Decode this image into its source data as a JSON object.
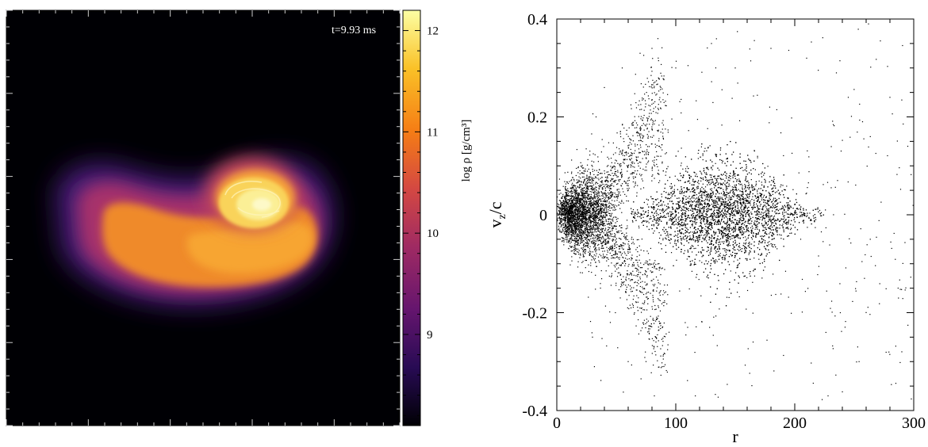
{
  "chart_data": [
    {
      "type": "heatmap",
      "annotation": "t=9.93 ms",
      "colorbar": {
        "label": "log ρ [g/cm³]",
        "range": [
          8.1,
          12.2
        ],
        "ticks": [
          9,
          10,
          11,
          12
        ],
        "colormap": [
          "#000004",
          "#280b54",
          "#65156e",
          "#9f2a63",
          "#d44842",
          "#f57d15",
          "#fac127",
          "#fcffa4"
        ]
      },
      "density_features": [
        {
          "feature": "tidal tail",
          "log_rho_peak": 11.2
        },
        {
          "feature": "remnant core",
          "log_rho_peak": 12.2
        }
      ]
    },
    {
      "type": "scatter",
      "xlabel": "r",
      "ylabel": "v_z/c",
      "xlim": [
        0,
        300
      ],
      "ylim": [
        -0.4,
        0.4
      ],
      "xticks": [
        "0",
        "100",
        "200",
        "300"
      ],
      "yticks": [
        "-0.4",
        "-0.2",
        "0",
        "0.2",
        "0.4"
      ],
      "point_color": "#000000",
      "components": [
        {
          "component": "core",
          "r_range": [
            0,
            50
          ],
          "vz_spread": 0.06
        },
        {
          "component": "v-shaped outflow",
          "r_range": [
            30,
            90
          ],
          "vz_peak": 0.36
        },
        {
          "component": "main disk",
          "r_range": [
            60,
            210
          ],
          "center_r": 140,
          "vz_spread": 0.05
        },
        {
          "component": "sparse halo",
          "r_range": [
            30,
            300
          ],
          "vz_range": [
            -0.38,
            0.39
          ]
        }
      ],
      "points": [
        [
          5,
          0.0
        ],
        [
          8,
          0.05
        ],
        [
          10,
          -0.04
        ],
        [
          12,
          0.07
        ],
        [
          15,
          -0.07
        ],
        [
          20,
          0.03
        ],
        [
          30,
          -0.25
        ],
        [
          33,
          0.2
        ],
        [
          40,
          0.26
        ],
        [
          45,
          -0.22
        ],
        [
          55,
          0.3
        ],
        [
          60,
          -0.3
        ],
        [
          70,
          0.33
        ],
        [
          75,
          -0.3
        ],
        [
          80,
          0.34
        ],
        [
          82,
          -0.37
        ],
        [
          85,
          0.36
        ],
        [
          90,
          -0.31
        ],
        [
          100,
          0.3
        ],
        [
          110,
          -0.23
        ],
        [
          130,
          0.35
        ],
        [
          150,
          0.3
        ],
        [
          165,
          -0.26
        ],
        [
          180,
          0.34
        ],
        [
          210,
          0.32
        ],
        [
          228,
          -0.37
        ],
        [
          235,
          0.29
        ],
        [
          245,
          0.24
        ],
        [
          262,
          0.39
        ],
        [
          280,
          0.24
        ],
        [
          290,
          -0.28
        ],
        [
          295,
          0.14
        ],
        [
          145,
          0.08
        ],
        [
          160,
          -0.09
        ],
        [
          190,
          0.06
        ],
        [
          205,
          -0.05
        ]
      ]
    }
  ]
}
